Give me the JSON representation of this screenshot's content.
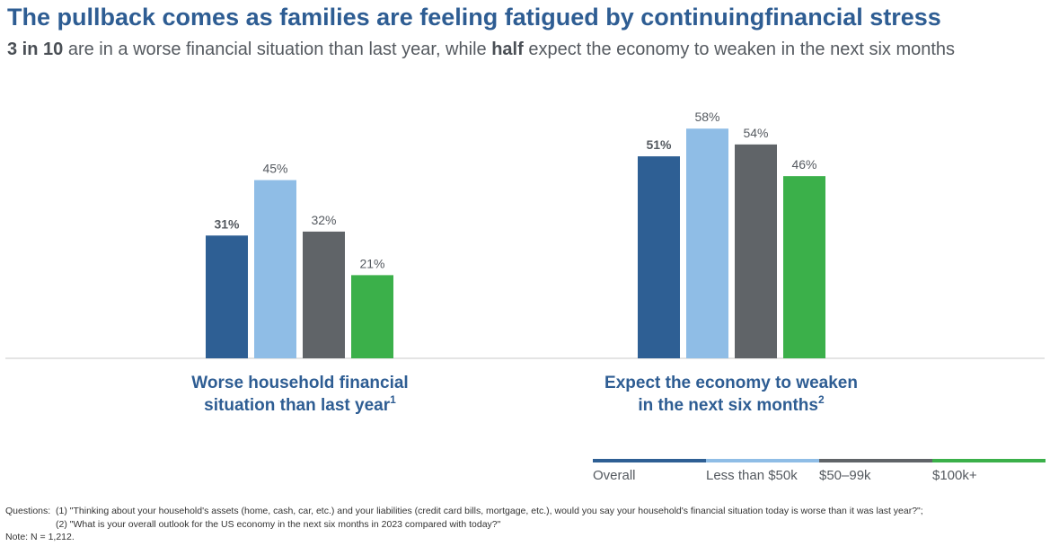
{
  "title": "The pullback comes as families are feeling fatigued by continuingfinancial stress",
  "subtitle": {
    "part1_bold": "3 in 10",
    "part2": " are in a worse financial situation than last year, while ",
    "part3_bold": "half",
    "part4": " expect the economy to weaken in the next six months"
  },
  "colors": {
    "overall": "#2e5f94",
    "less_than_50k": "#8fbde6",
    "k50_99": "#606468",
    "k100_plus": "#3bb04a",
    "accent": "#2e5d93"
  },
  "chart_data": {
    "type": "bar",
    "categories": [
      {
        "label": "Worse household financial situation than last year",
        "line1": "Worse household financial",
        "line2": "situation than last year",
        "footnote": "1"
      },
      {
        "label": "Expect the economy to weaken in the next six months",
        "line1": "Expect the economy to weaken",
        "line2": "in the next six months",
        "footnote": "2"
      }
    ],
    "series": [
      {
        "name": "Overall",
        "color": "#2e5f94",
        "values": [
          31,
          51
        ],
        "labels": [
          "31%",
          "51%"
        ],
        "bold_labels": true
      },
      {
        "name": "Less than $50k",
        "color": "#8fbde6",
        "values": [
          45,
          58
        ],
        "labels": [
          "45%",
          "58%"
        ]
      },
      {
        "name": "$50–99k",
        "color": "#606468",
        "values": [
          32,
          54
        ],
        "labels": [
          "32%",
          "54%"
        ]
      },
      {
        "name": "$100k+",
        "color": "#3bb04a",
        "values": [
          21,
          46
        ],
        "labels": [
          "21%",
          "46%"
        ]
      }
    ],
    "ylim": [
      0,
      100
    ],
    "grid": false,
    "legend_position": "bottom-right",
    "xlabel": "",
    "ylabel": ""
  },
  "notes": {
    "questions_label": "Questions:",
    "q1": "(1) \"Thinking about your household's assets (home, cash, car, etc.) and your liabilities (credit card bills, mortgage, etc.), would you say your household's financial situation today is worse than it was last year?\";",
    "q2": "(2) \"What is your overall outlook for the US economy in the next six months in 2023 compared with today?\"",
    "note": "Note: N = 1,212."
  }
}
